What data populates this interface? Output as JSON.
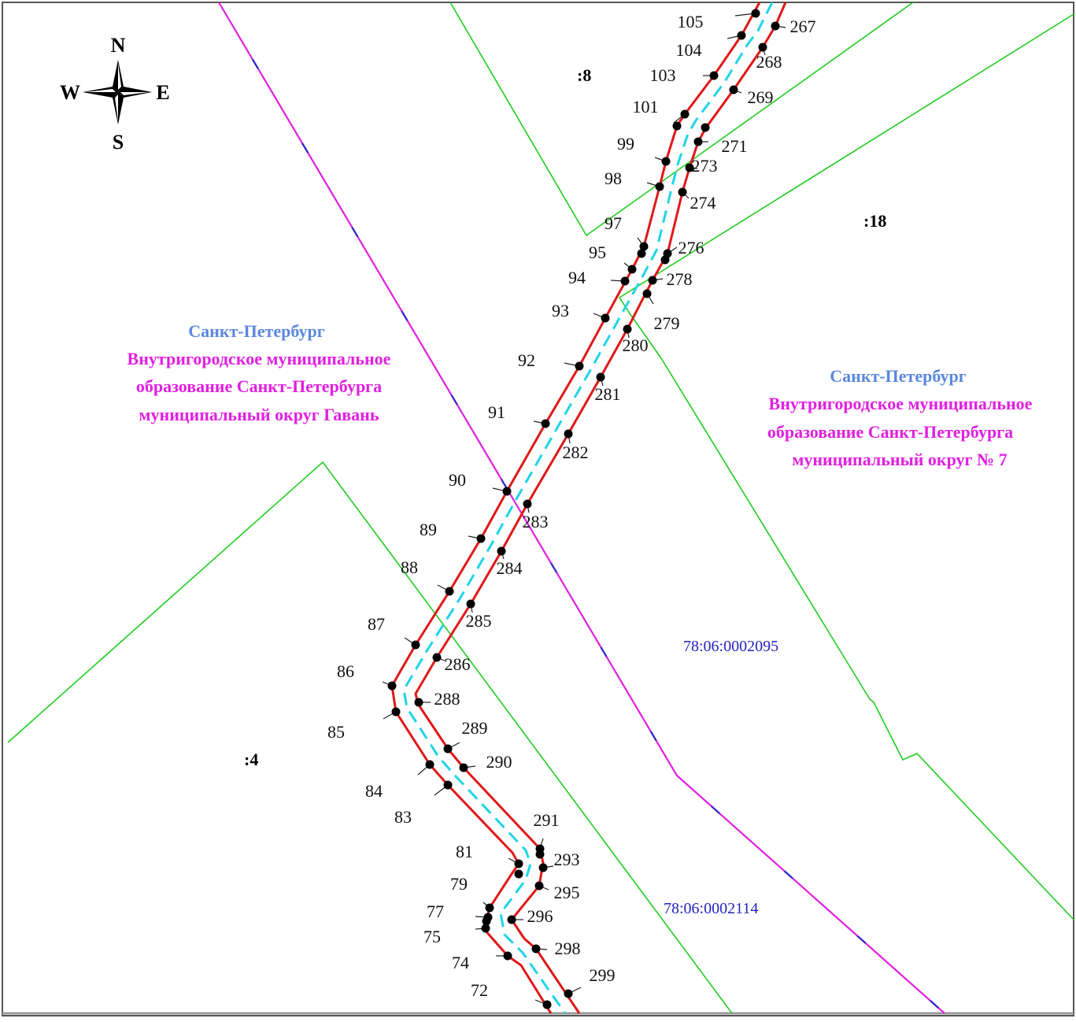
{
  "colors": {
    "background": "#ffffff",
    "frame": "#555555",
    "parcel_boundary": "#22cc22",
    "district_boundary_a": "#e020e0",
    "district_boundary_b": "#2a2ac8",
    "corridor_edge": "#e01818",
    "centerline": "#1fd4e8",
    "point": "#000000",
    "city_label": "#5b87e0",
    "district_label": "#e020e0",
    "quarter_label": "#2323c0"
  },
  "compass": {
    "north": "N",
    "south": "S",
    "west": "W",
    "east": "E"
  },
  "regions": [
    {
      "id": "left",
      "city": "Санкт-Петербург",
      "lines": [
        "Внутригородское муниципальное",
        "образование Санкт-Петербурга",
        "муниципальный округ Гавань"
      ]
    },
    {
      "id": "right",
      "city": "Санкт-Петербург",
      "lines": [
        "Внутригородское муниципальное",
        "образование Санкт-Петербурга",
        "муниципальный округ № 7"
      ]
    }
  ],
  "parcels": [
    ":8",
    ":18",
    ":4"
  ],
  "quarters": [
    "78:06:0002095",
    "78:06:0002114"
  ],
  "points_left": [
    "105",
    "104",
    "103",
    "101",
    "99",
    "98",
    "97",
    "95",
    "94",
    "93",
    "92",
    "91",
    "90",
    "89",
    "88",
    "87",
    "86",
    "85",
    "84",
    "83",
    "81",
    "79",
    "77",
    "75",
    "74",
    "72"
  ],
  "points_right": [
    "267",
    "268",
    "269",
    "271",
    "273",
    "274",
    "276",
    "278",
    "279",
    "280",
    "281",
    "282",
    "283",
    "284",
    "285",
    "286",
    "288",
    "289",
    "290",
    "291",
    "293",
    "295",
    "296",
    "298",
    "299"
  ]
}
